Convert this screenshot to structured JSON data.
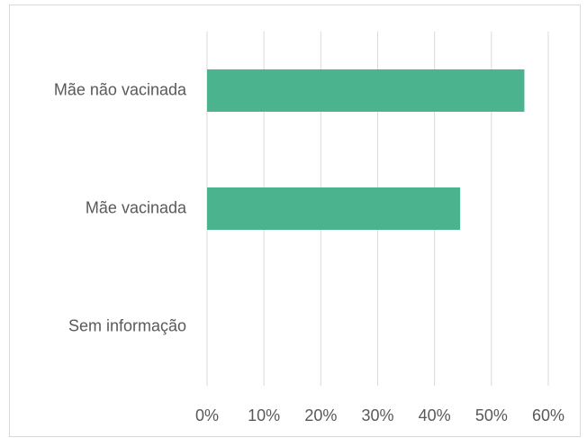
{
  "chart_data": {
    "type": "bar",
    "orientation": "horizontal",
    "categories": [
      "Mãe não vacinada",
      "Mãe vacinada",
      "Sem informação"
    ],
    "values": [
      55.8,
      44.5,
      0
    ],
    "color": "#4bb38e",
    "xlim": [
      0,
      60
    ],
    "xticks": [
      {
        "value": 0,
        "label": "0%"
      },
      {
        "value": 10,
        "label": "10%"
      },
      {
        "value": 20,
        "label": "20%"
      },
      {
        "value": 30,
        "label": "30%"
      },
      {
        "value": 40,
        "label": "40%"
      },
      {
        "value": 50,
        "label": "50%"
      },
      {
        "value": 60,
        "label": "60%"
      }
    ],
    "grid": true
  }
}
